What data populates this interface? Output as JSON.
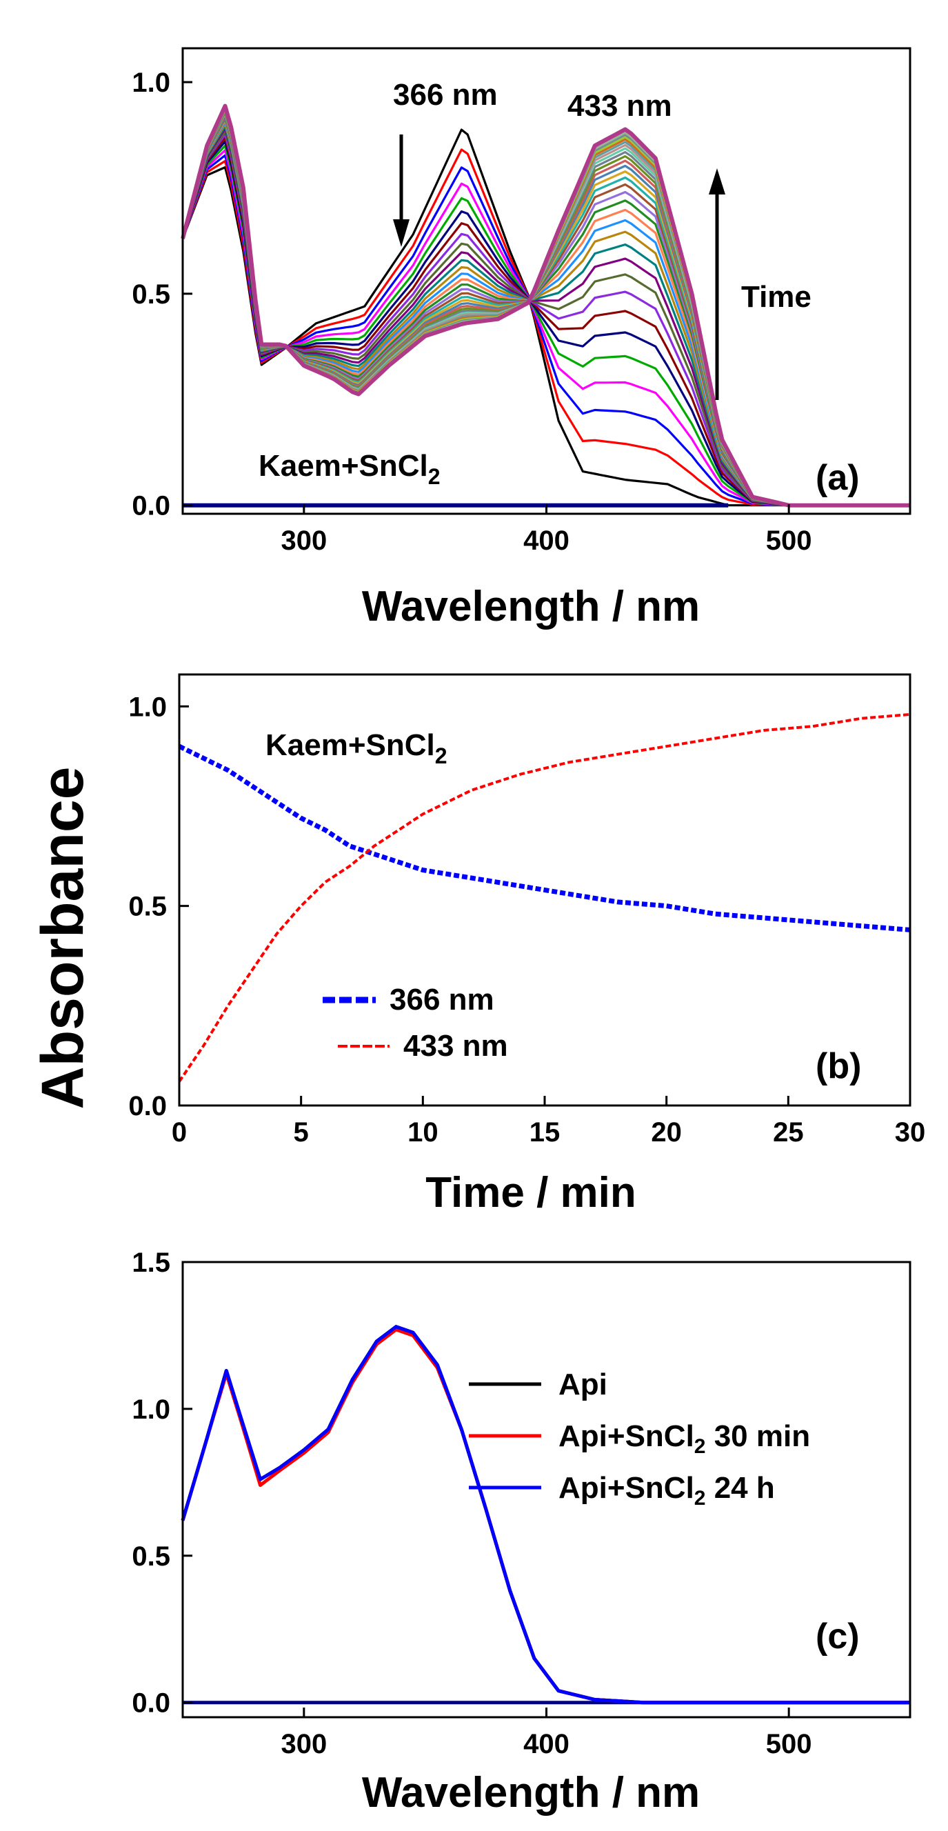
{
  "figure": {
    "shared_ylabel": "Absorbance"
  },
  "chart_data": [
    {
      "panel": "(a)",
      "type": "line",
      "xlabel": "Wavelength / nm",
      "ylabel": "",
      "xlim": [
        250,
        550
      ],
      "ylim": [
        -0.02,
        1.08
      ],
      "xticks": [
        "300",
        "400",
        "500"
      ],
      "yticks": [
        "0.0",
        "0.5",
        "1.0"
      ],
      "grid": false,
      "annotations": {
        "peak1": "366 nm",
        "peak2": "433 nm",
        "arrow_label": "Time",
        "sample_main": "Kaem+SnCl",
        "sample_sub": "2"
      },
      "series_family": {
        "description": "spectra recorded over time (0 to 30 min)",
        "count": 32,
        "initial": {
          "color": "#000000",
          "points": [
            [
              250,
              0.63
            ],
            [
              260,
              0.78
            ],
            [
              268,
              0.8
            ],
            [
              275,
              0.6
            ],
            [
              282,
              0.33
            ],
            [
              292,
              0.37
            ],
            [
              305,
              0.43
            ],
            [
              325,
              0.47
            ],
            [
              345,
              0.64
            ],
            [
              366,
              0.9
            ],
            [
              385,
              0.6
            ],
            [
              393,
              0.49
            ],
            [
              405,
              0.2
            ],
            [
              415,
              0.08
            ],
            [
              433,
              0.06
            ],
            [
              450,
              0.05
            ],
            [
              462,
              0.02
            ],
            [
              475,
              0.0
            ],
            [
              500,
              0.0
            ],
            [
              550,
              0.0
            ]
          ]
        },
        "final": {
          "color": "#B03A8A",
          "points": [
            [
              250,
              0.63
            ],
            [
              260,
              0.85
            ],
            [
              268,
              0.95
            ],
            [
              275,
              0.75
            ],
            [
              282,
              0.38
            ],
            [
              292,
              0.38
            ],
            [
              300,
              0.33
            ],
            [
              312,
              0.3
            ],
            [
              322,
              0.26
            ],
            [
              335,
              0.33
            ],
            [
              350,
              0.4
            ],
            [
              366,
              0.43
            ],
            [
              380,
              0.44
            ],
            [
              393,
              0.48
            ],
            [
              405,
              0.65
            ],
            [
              420,
              0.85
            ],
            [
              433,
              0.89
            ],
            [
              445,
              0.82
            ],
            [
              460,
              0.5
            ],
            [
              472,
              0.16
            ],
            [
              485,
              0.02
            ],
            [
              500,
              0.0
            ],
            [
              550,
              0.0
            ]
          ]
        },
        "palette": [
          "#000000",
          "#ff0000",
          "#0000ff",
          "#ff00ff",
          "#00aa00",
          "#000080",
          "#8b0000",
          "#8a2be2",
          "#556b2f",
          "#800080",
          "#008080",
          "#b8860b",
          "#1e90ff",
          "#ff7f50",
          "#228b22",
          "#9370db",
          "#a0522d",
          "#20b2aa",
          "#daa520",
          "#4682b4",
          "#cd5c5c",
          "#6b8e23",
          "#708090",
          "#66cdaa",
          "#bc8f8f",
          "#5f9ea0",
          "#d2691e",
          "#9acd32",
          "#778899",
          "#8fbc8f",
          "#a9a9a9",
          "#b03a8a"
        ]
      },
      "baseline": {
        "color": "#000080",
        "y": 0.0,
        "xrange": [
          250,
          475
        ]
      }
    },
    {
      "panel": "(b)",
      "type": "line",
      "xlabel": "Time / min",
      "ylabel": "",
      "xlim": [
        0,
        30
      ],
      "ylim": [
        0.0,
        1.08
      ],
      "xticks": [
        "0",
        "5",
        "10",
        "15",
        "20",
        "25",
        "30"
      ],
      "yticks": [
        "0.0",
        "0.5",
        "1.0"
      ],
      "grid": false,
      "legend": {
        "position": "bottom-left"
      },
      "annotations": {
        "sample_main": "Kaem+SnCl",
        "sample_sub": "2"
      },
      "series": [
        {
          "name": "366 nm",
          "color": "#0000ff",
          "style": "dashed",
          "x": [
            0,
            1,
            2,
            3,
            4,
            5,
            6,
            7,
            8,
            9,
            10,
            12,
            14,
            16,
            18,
            20,
            22,
            24,
            26,
            28,
            30
          ],
          "y": [
            0.9,
            0.87,
            0.84,
            0.8,
            0.76,
            0.72,
            0.69,
            0.65,
            0.63,
            0.61,
            0.59,
            0.57,
            0.55,
            0.53,
            0.51,
            0.5,
            0.48,
            0.47,
            0.46,
            0.45,
            0.44
          ]
        },
        {
          "name": "433 nm",
          "color": "#ff0000",
          "style": "dashed",
          "x": [
            0,
            1,
            2,
            3,
            4,
            5,
            6,
            7,
            8,
            9,
            10,
            12,
            14,
            16,
            18,
            20,
            22,
            24,
            26,
            28,
            30
          ],
          "y": [
            0.06,
            0.15,
            0.25,
            0.34,
            0.43,
            0.5,
            0.56,
            0.6,
            0.65,
            0.69,
            0.73,
            0.79,
            0.83,
            0.86,
            0.88,
            0.9,
            0.92,
            0.94,
            0.95,
            0.97,
            0.98
          ]
        }
      ]
    },
    {
      "panel": "(c)",
      "type": "line",
      "xlabel": "Wavelength / nm",
      "ylabel": "",
      "xlim": [
        250,
        550
      ],
      "ylim": [
        -0.05,
        1.5
      ],
      "xticks": [
        "300",
        "400",
        "500"
      ],
      "yticks": [
        "0.0",
        "0.5",
        "1.0",
        "1.5"
      ],
      "grid": false,
      "legend": {
        "position": "center-right"
      },
      "series": [
        {
          "name": "Api",
          "legend_main": "Api",
          "legend_sub": "",
          "legend_tail": "",
          "color": "#000000",
          "x": [
            250,
            260,
            268,
            274,
            282,
            290,
            300,
            310,
            320,
            330,
            338,
            345,
            355,
            365,
            375,
            385,
            395,
            405,
            420,
            440,
            460,
            500,
            550
          ],
          "y": [
            0.62,
            0.9,
            1.13,
            0.97,
            0.76,
            0.8,
            0.86,
            0.93,
            1.1,
            1.23,
            1.28,
            1.26,
            1.15,
            0.93,
            0.66,
            0.38,
            0.15,
            0.04,
            0.01,
            0.0,
            0.0,
            0.0,
            0.0
          ]
        },
        {
          "name": "Api+SnCl2 30 min",
          "legend_main": "Api+SnCl",
          "legend_sub": "2",
          "legend_tail": " 30 min",
          "color": "#ff0000",
          "x": [
            250,
            260,
            268,
            274,
            282,
            290,
            300,
            310,
            320,
            330,
            338,
            345,
            355,
            365,
            375,
            385,
            395,
            405,
            420,
            440,
            460,
            500,
            550
          ],
          "y": [
            0.62,
            0.9,
            1.12,
            0.96,
            0.74,
            0.79,
            0.85,
            0.92,
            1.09,
            1.22,
            1.27,
            1.25,
            1.14,
            0.93,
            0.66,
            0.38,
            0.15,
            0.04,
            0.01,
            0.0,
            0.0,
            0.0,
            0.0
          ]
        },
        {
          "name": "Api+SnCl2 24 h",
          "legend_main": "Api+SnCl",
          "legend_sub": "2",
          "legend_tail": " 24 h",
          "color": "#0000ff",
          "x": [
            250,
            260,
            268,
            274,
            282,
            290,
            300,
            310,
            320,
            330,
            338,
            345,
            355,
            365,
            375,
            385,
            395,
            405,
            420,
            440,
            460,
            500,
            550
          ],
          "y": [
            0.62,
            0.9,
            1.13,
            0.97,
            0.76,
            0.8,
            0.86,
            0.93,
            1.1,
            1.23,
            1.28,
            1.26,
            1.15,
            0.93,
            0.66,
            0.38,
            0.15,
            0.04,
            0.01,
            0.0,
            0.0,
            0.0,
            0.0
          ]
        }
      ],
      "baseline": {
        "color": "#000080",
        "y": 0.0,
        "xrange": [
          250,
          550
        ]
      }
    }
  ]
}
